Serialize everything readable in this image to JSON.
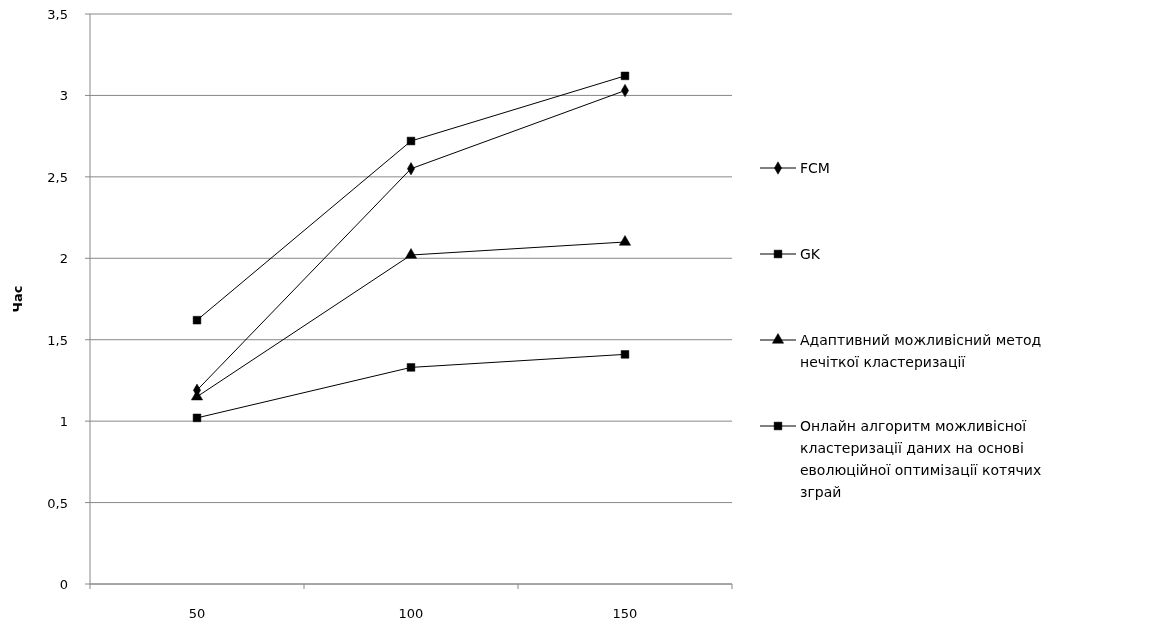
{
  "chart_data": {
    "type": "line",
    "ylabel": "Час",
    "categories": [
      "50",
      "100",
      "150"
    ],
    "series": [
      {
        "name": "FCM",
        "color": "#000000",
        "marker": "diamond",
        "values": [
          1.19,
          2.55,
          3.03
        ]
      },
      {
        "name": "GK",
        "color": "#000000",
        "marker": "square",
        "values": [
          1.62,
          2.72,
          3.12
        ]
      },
      {
        "name": "Адаптивний можливісний метод нечіткої кластеризації",
        "color": "#000000",
        "marker": "triangle",
        "values": [
          1.15,
          2.02,
          2.1
        ]
      },
      {
        "name": "Онлайн алгоритм можливісної кластеризації даних на основі еволюційної оптимізації котячих зграй",
        "color": "#000000",
        "marker": "square",
        "values": [
          1.02,
          1.33,
          1.41
        ]
      }
    ],
    "ylim": [
      0,
      3.5
    ],
    "yticks": [
      0,
      {
        "value": 0.5,
        "label": "0,5"
      },
      1,
      {
        "value": 1.5,
        "label": "1,5"
      },
      2,
      {
        "value": 2.5,
        "label": "2,5"
      },
      3,
      {
        "value": 3.5,
        "label": "3,5"
      }
    ],
    "grid": "y",
    "legend": "right",
    "line_style": "solid"
  }
}
